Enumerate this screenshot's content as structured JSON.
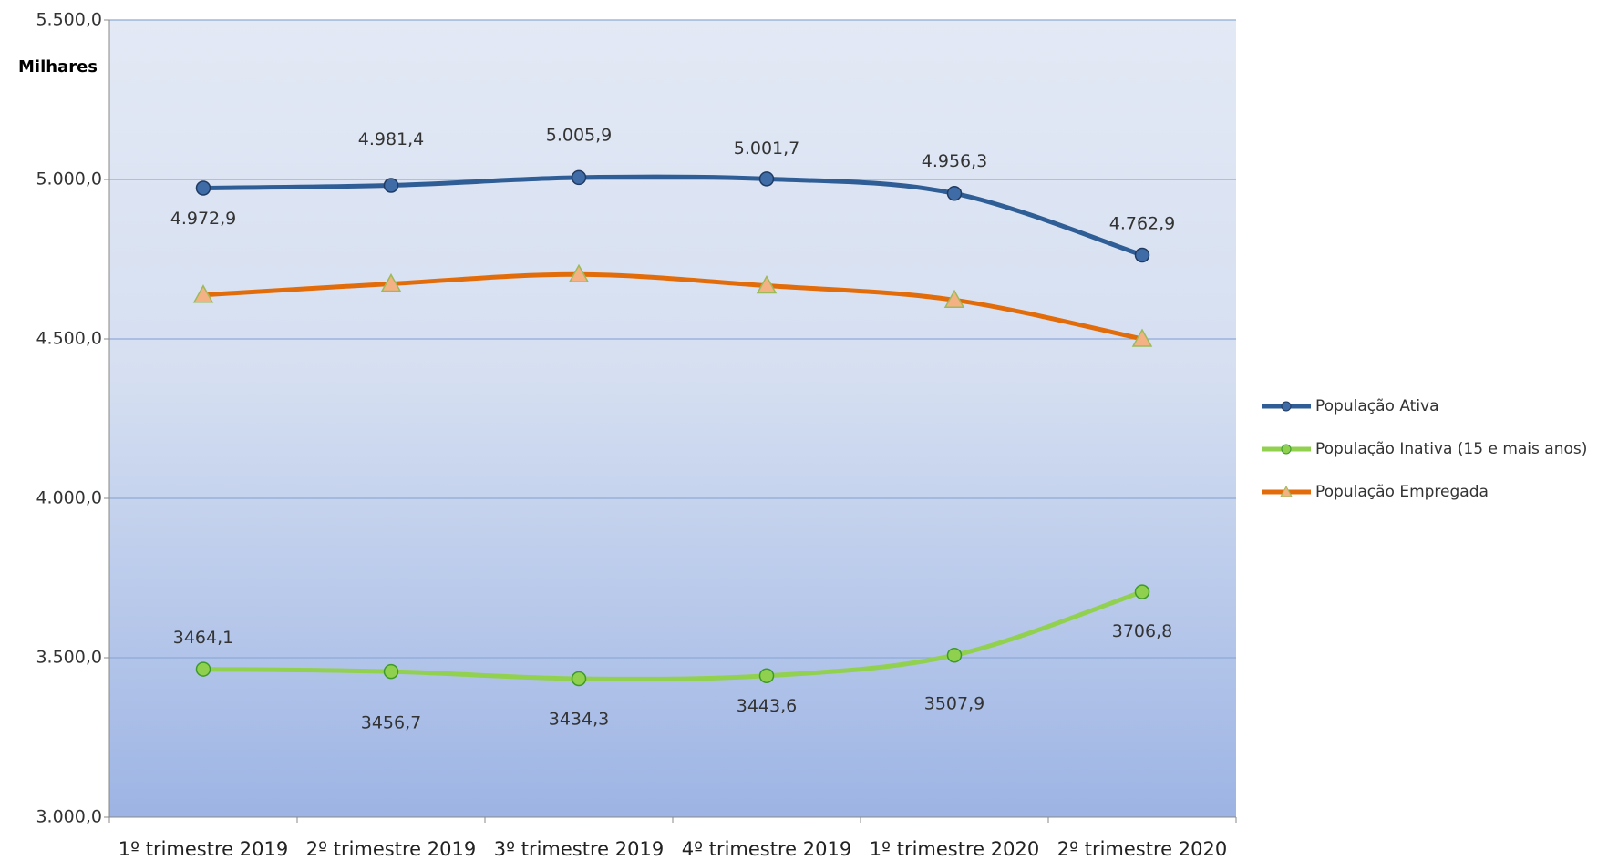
{
  "chart_data": {
    "type": "line",
    "y_label": "Milhares",
    "categories": [
      "1º trimestre 2019",
      "2º trimestre 2019",
      "3º trimestre 2019",
      "4º trimestre 2019",
      "1º trimestre 2020",
      "2º trimestre 2020"
    ],
    "series": [
      {
        "name": "População Ativa",
        "color": "#2f5d95",
        "marker": "circle",
        "marker_fill": "#3f6ca6",
        "values": [
          4972.9,
          4981.4,
          5005.9,
          5001.7,
          4956.3,
          4762.9
        ],
        "value_labels": [
          "4.972,9",
          "4.981,4",
          "5.005,9",
          "5.001,7",
          "4.956,3",
          "4.762,9"
        ]
      },
      {
        "name": "População Inativa (15 e mais anos)",
        "color": "#92d050",
        "marker": "circle",
        "marker_fill": "#8fd14f",
        "values": [
          3464.1,
          3456.7,
          3434.3,
          3443.6,
          3507.9,
          3706.8
        ],
        "value_labels": [
          "3464,1",
          "3456,7",
          "3434,3",
          "3443,6",
          "3507,9",
          "3706,8"
        ]
      },
      {
        "name": "População Empregada",
        "color": "#e36c0a",
        "marker": "triangle",
        "marker_fill": "#f4b183",
        "values": [
          4638,
          4673,
          4702,
          4667,
          4622,
          4500
        ]
      }
    ],
    "ylim": [
      3000,
      5500
    ],
    "yticks": [
      {
        "value": 3000,
        "label": "3.000,0"
      },
      {
        "value": 3500,
        "label": "3.500,0"
      },
      {
        "value": 4000,
        "label": "4.000,0"
      },
      {
        "value": 4500,
        "label": "4.500,0"
      },
      {
        "value": 5000,
        "label": "5.000,0"
      },
      {
        "value": 5500,
        "label": "5.500,0"
      }
    ],
    "grid": true,
    "legend": "right"
  }
}
